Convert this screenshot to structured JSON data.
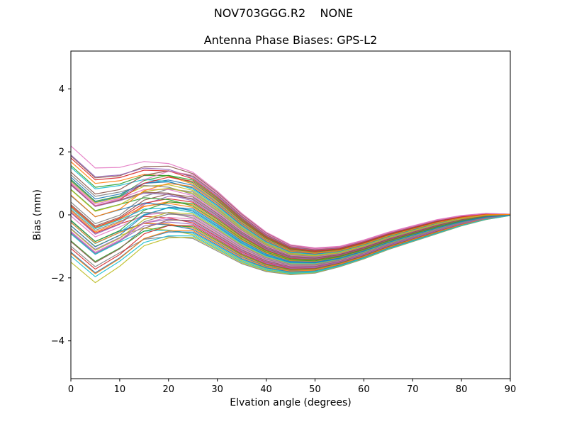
{
  "chart_data": {
    "type": "line",
    "suptitle": "NOV703GGG.R2    NONE",
    "title": "Antenna Phase Biases: GPS-L2",
    "xlabel": "Elvation angle (degrees)",
    "ylabel": "Bias (mm)",
    "xlim": [
      0,
      90
    ],
    "ylim": [
      -5.2,
      5.2
    ],
    "xticks": [
      0,
      10,
      20,
      30,
      40,
      50,
      60,
      70,
      80,
      90
    ],
    "yticks": [
      -4,
      -2,
      0,
      2,
      4
    ],
    "grid": false,
    "legend": "none",
    "x": [
      0,
      5,
      10,
      15,
      20,
      25,
      30,
      35,
      40,
      45,
      50,
      55,
      60,
      65,
      70,
      75,
      80,
      85,
      90
    ],
    "band": {
      "description": "Dense bundle of per-satellite phase-bias curves; top and bottom envelopes of the bundle in mm",
      "top": [
        1.65,
        0.95,
        1.05,
        1.45,
        1.55,
        1.35,
        0.75,
        0.05,
        -0.55,
        -0.95,
        -1.05,
        -1.0,
        -0.8,
        -0.55,
        -0.35,
        -0.15,
        -0.02,
        0.05,
        0.02
      ],
      "bottom": [
        -1.05,
        -1.7,
        -1.25,
        -0.8,
        -0.7,
        -0.75,
        -1.15,
        -1.55,
        -1.8,
        -1.9,
        -1.85,
        -1.65,
        -1.4,
        -1.1,
        -0.85,
        -0.6,
        -0.35,
        -0.15,
        -0.02
      ]
    },
    "lines": {
      "count": 52,
      "left_spread_weights": [
        1,
        1,
        0.85,
        0.45,
        0.15,
        0,
        0,
        0,
        0,
        0,
        0,
        0,
        0,
        0,
        0,
        0,
        0,
        0,
        0
      ],
      "left_spread_amplitude": 0.55,
      "colors": [
        "#1f77b4",
        "#ff7f0e",
        "#2ca02c",
        "#d62728",
        "#9467bd",
        "#8c564b",
        "#e377c2",
        "#7f7f7f",
        "#bcbd22",
        "#17becf"
      ]
    }
  }
}
